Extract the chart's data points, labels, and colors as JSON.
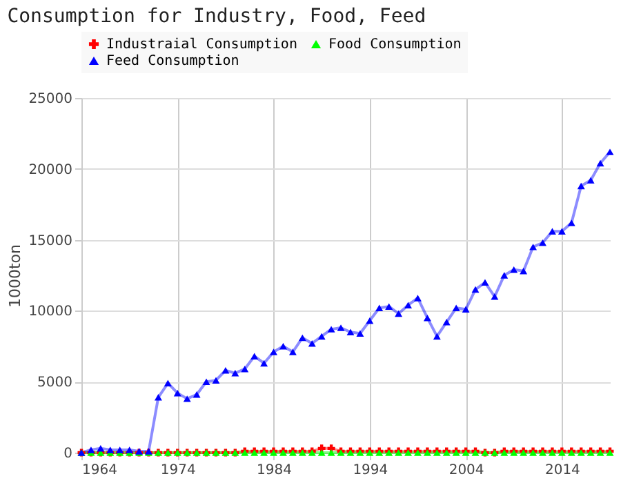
{
  "chart_data": {
    "type": "line",
    "title": "Consumption for Industry, Food, Feed",
    "ylabel": "1000ton",
    "x": [
      1964,
      1965,
      1966,
      1967,
      1968,
      1969,
      1970,
      1971,
      1972,
      1973,
      1974,
      1975,
      1976,
      1977,
      1978,
      1979,
      1980,
      1981,
      1982,
      1983,
      1984,
      1985,
      1986,
      1987,
      1988,
      1989,
      1990,
      1991,
      1992,
      1993,
      1994,
      1995,
      1996,
      1997,
      1998,
      1999,
      2000,
      2001,
      2002,
      2003,
      2004,
      2005,
      2006,
      2007,
      2008,
      2009,
      2010,
      2011,
      2012,
      2013,
      2014,
      2015,
      2016,
      2017,
      2018,
      2019
    ],
    "series": [
      {
        "name": "Industraial Consumption",
        "color": "#ff0000",
        "marker": "cross",
        "values": [
          0,
          0,
          0,
          0,
          0,
          0,
          0,
          0,
          0,
          0,
          0,
          0,
          0,
          0,
          0,
          0,
          0,
          100,
          100,
          100,
          100,
          100,
          100,
          100,
          100,
          300,
          300,
          100,
          100,
          100,
          100,
          100,
          100,
          100,
          100,
          100,
          100,
          100,
          100,
          100,
          100,
          100,
          0,
          0,
          100,
          100,
          100,
          100,
          100,
          100,
          100,
          100,
          100,
          100,
          100,
          100
        ]
      },
      {
        "name": "Food Consumption",
        "color": "#00ff00",
        "marker": "triangle",
        "values": [
          0,
          0,
          0,
          0,
          0,
          0,
          0,
          0,
          0,
          0,
          0,
          0,
          0,
          0,
          0,
          0,
          0,
          0,
          0,
          0,
          0,
          0,
          0,
          0,
          0,
          0,
          0,
          0,
          0,
          0,
          0,
          0,
          0,
          0,
          0,
          0,
          0,
          0,
          0,
          0,
          0,
          0,
          0,
          0,
          0,
          0,
          0,
          0,
          0,
          0,
          0,
          0,
          0,
          0,
          0,
          0
        ]
      },
      {
        "name": "Feed Consumption",
        "color": "#0000ff",
        "marker": "triangle",
        "values": [
          0,
          200,
          300,
          200,
          200,
          200,
          100,
          100,
          3900,
          4900,
          4200,
          3800,
          4100,
          5000,
          5100,
          5800,
          5600,
          5900,
          6800,
          6300,
          7100,
          7500,
          7100,
          8100,
          7700,
          8200,
          8700,
          8800,
          8500,
          8400,
          9300,
          10200,
          10300,
          9800,
          10400,
          10900,
          9500,
          8200,
          9200,
          10200,
          10100,
          11500,
          12000,
          11000,
          12500,
          12900,
          12800,
          14500,
          14800,
          15600,
          15600,
          16200,
          18800,
          19200,
          20400,
          21200
        ]
      }
    ],
    "xlim": [
      1964,
      2019
    ],
    "xticks": [
      1964,
      1974,
      1984,
      1994,
      2004,
      2014
    ],
    "ylim": [
      0,
      25000
    ],
    "yticks": [
      0,
      5000,
      10000,
      15000,
      20000,
      25000
    ],
    "grid": true,
    "legend": "top"
  }
}
